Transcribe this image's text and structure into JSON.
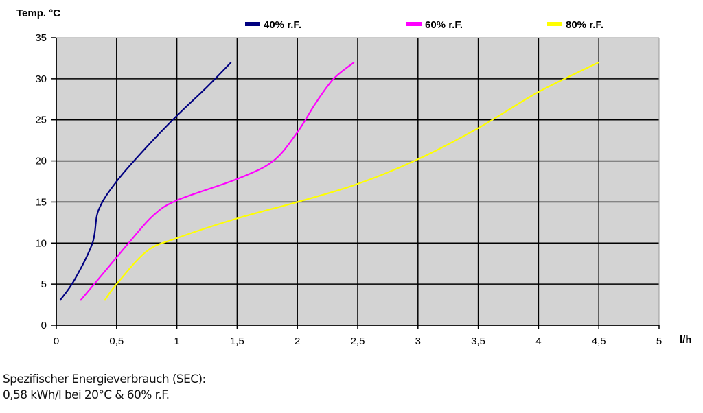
{
  "chart_data": {
    "type": "line",
    "title": "",
    "ylabel": "Temp. °C",
    "xlabel": "l/h",
    "xlim": [
      0,
      5
    ],
    "ylim": [
      0,
      35
    ],
    "grid": true,
    "legend_position": "top",
    "x_ticks": [
      "0",
      "0,5",
      "1",
      "1,5",
      "2",
      "2,5",
      "3",
      "3,5",
      "4",
      "4,5",
      "5"
    ],
    "y_ticks": [
      "0",
      "5",
      "10",
      "15",
      "20",
      "25",
      "30",
      "35"
    ],
    "series": [
      {
        "name": "40% r.F.",
        "color": "#000080",
        "points": [
          [
            0.03,
            3
          ],
          [
            0.15,
            5.5
          ],
          [
            0.3,
            10
          ],
          [
            0.35,
            14
          ],
          [
            0.5,
            17.5
          ],
          [
            0.75,
            21.7
          ],
          [
            1,
            25.5
          ],
          [
            1.25,
            29
          ],
          [
            1.45,
            32
          ]
        ]
      },
      {
        "name": "60% r.F.",
        "color": "#FF00FF",
        "points": [
          [
            0.2,
            3
          ],
          [
            0.4,
            6.5
          ],
          [
            0.6,
            10
          ],
          [
            0.8,
            13.3
          ],
          [
            1,
            15.2
          ],
          [
            1.5,
            17.8
          ],
          [
            1.8,
            20
          ],
          [
            2,
            23.5
          ],
          [
            2.15,
            27
          ],
          [
            2.3,
            30
          ],
          [
            2.47,
            32
          ]
        ]
      },
      {
        "name": "80% r.F.",
        "color": "#FFFF00",
        "points": [
          [
            0.4,
            3
          ],
          [
            0.5,
            5
          ],
          [
            0.75,
            9
          ],
          [
            1,
            10.6
          ],
          [
            1.5,
            13
          ],
          [
            2,
            15
          ],
          [
            2.5,
            17.2
          ],
          [
            3,
            20.2
          ],
          [
            3.5,
            24
          ],
          [
            4,
            28.4
          ],
          [
            4.5,
            32
          ]
        ]
      }
    ]
  },
  "caption": {
    "line1": "Spezifischer Energieverbrauch (SEC):",
    "line2": "0,58 kWh/l bei 20°C & 60% r.F."
  },
  "colors": {
    "plot_bg": "#D3D3D3",
    "grid": "#000000"
  }
}
